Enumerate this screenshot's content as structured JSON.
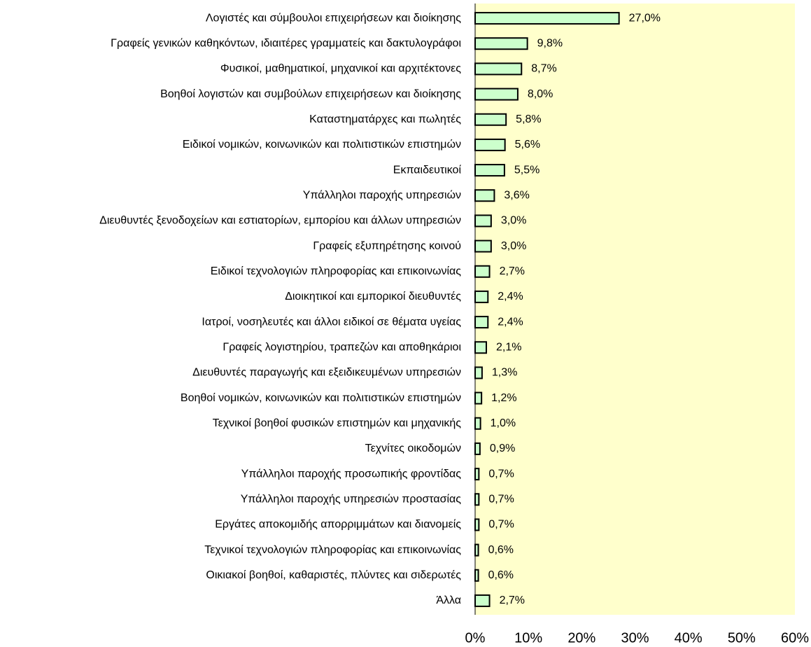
{
  "chart_data": {
    "type": "bar",
    "orientation": "horizontal",
    "categories": [
      "Λογιστές και σύμβουλοι επιχειρήσεων και διοίκησης",
      "Γραφείς γενικών καθηκόντων, ιδιαιτέρες γραμματείς και δακτυλογράφοι",
      "Φυσικοί, μαθηματικοί, μηχανικοί και αρχιτέκτονες",
      "Βοηθοί λογιστών και συμβούλων επιχειρήσεων και διοίκησης",
      "Καταστηματάρχες και πωλητές",
      "Ειδικοί νομικών, κοινωνικών και πολιτιστικών επιστημών",
      "Εκπαιδευτικοί",
      "Υπάλληλοι παροχής υπηρεσιών",
      "Διευθυντές ξενοδοχείων και εστιατορίων, εμπορίου και άλλων υπηρεσιών",
      "Γραφείς εξυπηρέτησης κοινού",
      "Ειδικοί τεχνολογιών πληροφορίας και επικοινωνίας",
      "Διοικητικοί και εμπορικοί διευθυντές",
      "Ιατροί, νοσηλευτές και άλλοι ειδικοί σε θέματα υγείας",
      "Γραφείς λογιστηρίου, τραπεζών και αποθηκάριοι",
      "Διευθυντές παραγωγής και εξειδικευμένων υπηρεσιών",
      "Βοηθοί νομικών, κοινωνικών και πολιτιστικών επιστημών",
      "Τεχνικοί βοηθοί φυσικών επιστημών και μηχανικής",
      "Τεχνίτες οικοδομών",
      "Υπάλληλοι παροχής προσωπικής φροντίδας",
      "Υπάλληλοι παροχής υπηρεσιών προστασίας",
      "Εργάτες αποκομιδής απορριμμάτων και διανομείς",
      "Τεχνικοί τεχνολογιών πληροφορίας και επικοινωνίας",
      "Οικιακοί βοηθοί, καθαριστές, πλύντες και σιδερωτές",
      "Άλλα"
    ],
    "values": [
      27.0,
      9.8,
      8.7,
      8.0,
      5.8,
      5.6,
      5.5,
      3.6,
      3.0,
      3.0,
      2.7,
      2.4,
      2.4,
      2.1,
      1.3,
      1.2,
      1.0,
      0.9,
      0.7,
      0.7,
      0.7,
      0.6,
      0.6,
      2.7
    ],
    "value_labels": [
      "27,0%",
      "9,8%",
      "8,7%",
      "8,0%",
      "5,8%",
      "5,6%",
      "5,5%",
      "3,6%",
      "3,0%",
      "3,0%",
      "2,7%",
      "2,4%",
      "2,4%",
      "2,1%",
      "1,3%",
      "1,2%",
      "1,0%",
      "0,9%",
      "0,7%",
      "0,7%",
      "0,7%",
      "0,6%",
      "0,6%",
      "2,7%"
    ],
    "color": "#ccffcc",
    "plot_background": "#ffffcc",
    "xlim": [
      0,
      60
    ],
    "xticks": [
      {
        "value": 0,
        "label": "0%"
      },
      {
        "value": 10,
        "label": "10%"
      },
      {
        "value": 20,
        "label": "20%"
      },
      {
        "value": 30,
        "label": "30%"
      },
      {
        "value": 40,
        "label": "40%"
      },
      {
        "value": 50,
        "label": "50%"
      },
      {
        "value": 60,
        "label": "60%"
      }
    ]
  }
}
